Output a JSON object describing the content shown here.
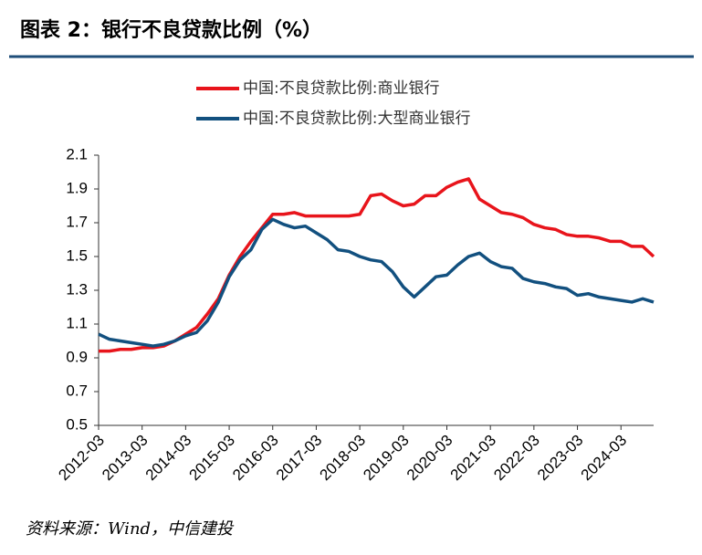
{
  "title": "图表 2：银行不良贷款比例（%）",
  "source": "资料来源：Wind，中信建投",
  "chart_data": {
    "type": "line",
    "categories": [
      "2012-03",
      null,
      null,
      null,
      "2013-03",
      null,
      null,
      null,
      "2014-03",
      null,
      null,
      null,
      "2015-03",
      null,
      null,
      null,
      "2016-03",
      null,
      null,
      null,
      "2017-03",
      null,
      null,
      null,
      "2018-03",
      null,
      null,
      null,
      "2019-03",
      null,
      null,
      null,
      "2020-03",
      null,
      null,
      null,
      "2021-03",
      null,
      null,
      null,
      "2022-03",
      null,
      null,
      null,
      "2023-03",
      null,
      null,
      null,
      "2024-03",
      null,
      null,
      null
    ],
    "series": [
      {
        "name": "中国:不良贷款比例:商业银行",
        "color": "#e8141b",
        "values": [
          0.94,
          0.94,
          0.95,
          0.95,
          0.96,
          0.96,
          0.97,
          1.0,
          1.04,
          1.08,
          1.16,
          1.25,
          1.39,
          1.5,
          1.59,
          1.67,
          1.75,
          1.75,
          1.76,
          1.74,
          1.74,
          1.74,
          1.74,
          1.74,
          1.75,
          1.86,
          1.87,
          1.83,
          1.8,
          1.81,
          1.86,
          1.86,
          1.91,
          1.94,
          1.96,
          1.84,
          1.8,
          1.76,
          1.75,
          1.73,
          1.69,
          1.67,
          1.66,
          1.63,
          1.62,
          1.62,
          1.61,
          1.59,
          1.59,
          1.56,
          1.56,
          1.5
        ]
      },
      {
        "name": "中国:不良贷款比例:大型商业银行",
        "color": "#12507f",
        "values": [
          1.04,
          1.01,
          1.0,
          0.99,
          0.98,
          0.97,
          0.98,
          1.0,
          1.03,
          1.05,
          1.12,
          1.23,
          1.38,
          1.48,
          1.54,
          1.66,
          1.72,
          1.69,
          1.67,
          1.68,
          1.64,
          1.6,
          1.54,
          1.53,
          1.5,
          1.48,
          1.47,
          1.41,
          1.32,
          1.26,
          1.32,
          1.38,
          1.39,
          1.45,
          1.5,
          1.52,
          1.47,
          1.44,
          1.43,
          1.37,
          1.35,
          1.34,
          1.32,
          1.31,
          1.27,
          1.28,
          1.26,
          1.25,
          1.24,
          1.23,
          1.25,
          1.23
        ]
      }
    ],
    "ylim": [
      0.5,
      2.1
    ],
    "yticks": [
      0.5,
      0.7,
      0.9,
      1.1,
      1.3,
      1.5,
      1.7,
      1.9,
      2.1
    ],
    "legend": "top"
  }
}
